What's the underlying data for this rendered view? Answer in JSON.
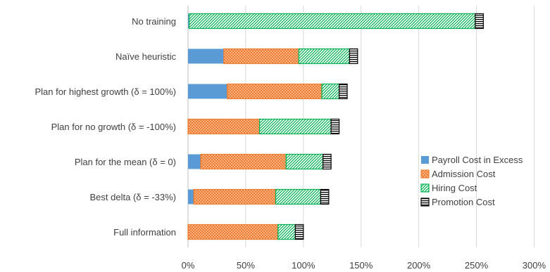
{
  "chart_data": {
    "type": "bar",
    "orientation": "horizontal",
    "stacked": true,
    "categories": [
      "No training",
      "Naïve heuristic",
      "Plan for highest growth (δ = 100%)",
      "Plan for no growth (δ = -100%)",
      "Plan for the mean (δ = 0)",
      "Best delta (δ = -33%)",
      "Full information"
    ],
    "series": [
      {
        "name": "Payroll Cost in Excess",
        "color": "#5B9BD5",
        "pattern": "solid",
        "values": [
          1,
          31,
          34,
          0,
          11,
          5,
          0
        ]
      },
      {
        "name": "Admission Cost",
        "color": "#ED7D31",
        "pattern": "dots",
        "values": [
          0,
          65,
          82,
          62,
          74,
          71,
          78
        ]
      },
      {
        "name": "Hiring Cost",
        "color": "#00B050",
        "pattern": "diagonal",
        "values": [
          248,
          44,
          15,
          62,
          32,
          39,
          15
        ]
      },
      {
        "name": "Promotion Cost",
        "color": "#000000",
        "pattern": "horizontal-lines",
        "values": [
          7,
          7,
          7,
          7,
          7,
          7,
          7
        ]
      }
    ],
    "x_ticks": [
      "0%",
      "50%",
      "100%",
      "150%",
      "200%",
      "250%",
      "300%"
    ],
    "xlim": [
      0,
      300
    ],
    "grid": "vertical",
    "legend": "bottom-right",
    "title": "",
    "xlabel": "",
    "ylabel": ""
  }
}
